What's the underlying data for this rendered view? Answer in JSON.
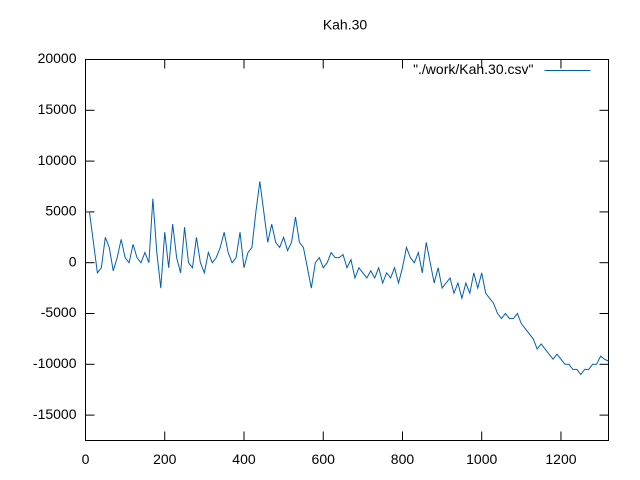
{
  "chart_data": {
    "type": "line",
    "title": "Kah.30",
    "x": [
      0,
      10,
      20,
      30,
      40,
      50,
      60,
      70,
      80,
      90,
      100,
      110,
      120,
      130,
      140,
      150,
      160,
      170,
      180,
      190,
      200,
      210,
      220,
      230,
      240,
      250,
      260,
      270,
      280,
      290,
      300,
      310,
      320,
      330,
      340,
      350,
      360,
      370,
      380,
      390,
      400,
      410,
      420,
      430,
      440,
      450,
      460,
      470,
      480,
      490,
      500,
      510,
      520,
      530,
      540,
      550,
      560,
      570,
      580,
      590,
      600,
      610,
      620,
      630,
      640,
      650,
      660,
      670,
      680,
      690,
      700,
      710,
      720,
      730,
      740,
      750,
      760,
      770,
      780,
      790,
      800,
      810,
      820,
      830,
      840,
      850,
      860,
      870,
      880,
      890,
      900,
      910,
      920,
      930,
      940,
      950,
      960,
      970,
      980,
      990,
      1000,
      1010,
      1020,
      1030,
      1040,
      1050,
      1060,
      1070,
      1080,
      1090,
      1100,
      1110,
      1120,
      1130,
      1140,
      1150,
      1160,
      1170,
      1180,
      1190,
      1200,
      1210,
      1220,
      1230,
      1240,
      1250,
      1260,
      1270,
      1280,
      1290,
      1300,
      1310,
      1320
    ],
    "series": [
      {
        "name": "\"./work/Kah.30.csv\"",
        "color": "#0060ad",
        "values": [
          5000,
          5000,
          2000,
          -1000,
          -500,
          2500,
          1500,
          -800,
          500,
          2300,
          500,
          0,
          1800,
          500,
          0,
          1000,
          0,
          6300,
          1000,
          -2500,
          3000,
          -500,
          3800,
          500,
          -1000,
          3500,
          0,
          -500,
          2500,
          0,
          -1000,
          1000,
          0,
          500,
          1500,
          3000,
          1000,
          0,
          500,
          3000,
          -500,
          1000,
          1500,
          5000,
          8000,
          5000,
          2000,
          3800,
          2000,
          1500,
          2500,
          1200,
          2000,
          4500,
          2000,
          1500,
          -500,
          -2500,
          0,
          500,
          -500,
          0,
          1000,
          500,
          500,
          800,
          -500,
          300,
          -1500,
          -500,
          -1000,
          -1500,
          -800,
          -1500,
          -500,
          -2000,
          -1000,
          -1500,
          -500,
          -2000,
          -500,
          1500,
          500,
          0,
          1000,
          -1000,
          2000,
          0,
          -2000,
          -500,
          -2500,
          -2000,
          -1500,
          -3000,
          -2000,
          -3500,
          -2000,
          -3000,
          -1000,
          -2500,
          -1000,
          -3000,
          -3500,
          -4000,
          -5000,
          -5500,
          -5000,
          -5500,
          -5500,
          -5000,
          -6000,
          -6500,
          -7000,
          -7500,
          -8500,
          -8000,
          -8500,
          -9000,
          -9500,
          -9000,
          -9500,
          -10000,
          -10000,
          -10500,
          -10500,
          -11000,
          -10500,
          -10500,
          -10000,
          -10000,
          -9200,
          -9500,
          -9700
        ]
      }
    ],
    "xlim": [
      0,
      1320
    ],
    "ylim": [
      -17500,
      20000
    ],
    "xticks": [
      0,
      200,
      400,
      600,
      800,
      1000,
      1200
    ],
    "yticks": [
      -15000,
      -10000,
      -5000,
      0,
      5000,
      10000,
      15000,
      20000
    ],
    "legend": "top-right"
  }
}
